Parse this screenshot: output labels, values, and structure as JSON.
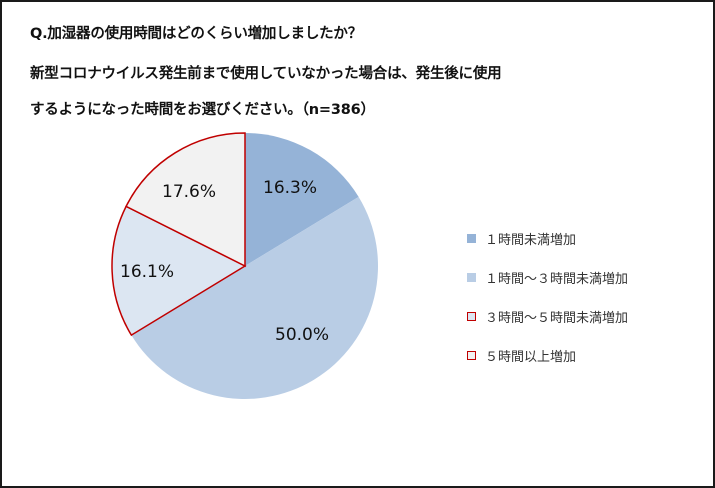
{
  "title": {
    "line1": "Q.加湿器の使用時間はどのくらい増加しましたか？",
    "line2": "新型コロナウイルス発生前まで使用していなかった場合は、発生後に使用",
    "line3": "するようになった時間をお選びください。（n=386）"
  },
  "legend": [
    {
      "label": "１時間未満増加",
      "fill": "#95b3d7",
      "border": "#95b3d7"
    },
    {
      "label": "１時間～３時間未満増加",
      "fill": "#b9cde5",
      "border": "#b9cde5"
    },
    {
      "label": "３時間～５時間未満増加",
      "fill": "#dce6f2",
      "border": "#c00000"
    },
    {
      "label": "５時間以上増加",
      "fill": "#f2f2f2",
      "border": "#c00000"
    }
  ],
  "slices": [
    {
      "label": "16.3%"
    },
    {
      "label": "50.0%"
    },
    {
      "label": "16.1%"
    },
    {
      "label": "17.6%"
    }
  ],
  "chart_data": {
    "type": "pie",
    "title": "Q.加湿器の使用時間はどのくらい増加しましたか？ 新型コロナウイルス発生前まで使用していなかった場合は、発生後に使用するようになった時間をお選びください。（n=386）",
    "categories": [
      "１時間未満増加",
      "１時間～３時間未満増加",
      "３時間～５時間未満増加",
      "５時間以上増加"
    ],
    "values": [
      16.3,
      50.0,
      16.1,
      17.6
    ],
    "unit": "%",
    "n": 386,
    "colors": [
      "#95b3d7",
      "#b9cde5",
      "#dce6f2",
      "#f2f2f2"
    ],
    "legend_position": "right"
  }
}
